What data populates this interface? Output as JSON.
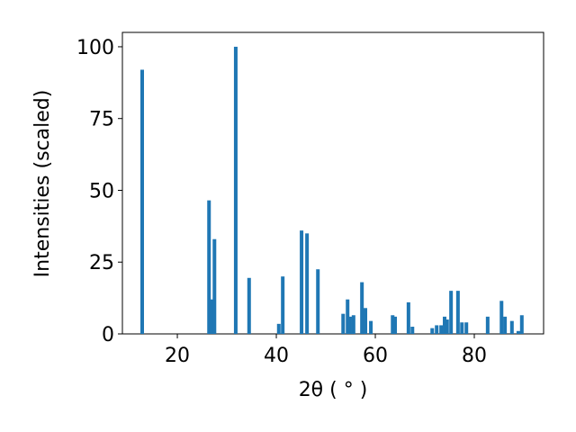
{
  "chart_data": {
    "type": "bar",
    "x_label": "2θ ( ° )",
    "y_label": "Intensities (scaled)",
    "color": "#1f77b4",
    "x": [
      12.9,
      26.4,
      26.9,
      27.5,
      31.8,
      34.5,
      40.5,
      41.3,
      45.1,
      46.2,
      48.4,
      53.5,
      54.4,
      54.9,
      55.6,
      57.3,
      58.0,
      59.1,
      63.5,
      64.0,
      66.7,
      67.5,
      71.5,
      72.4,
      73.3,
      74.0,
      74.5,
      75.3,
      76.7,
      77.5,
      78.4,
      82.7,
      85.5,
      86.2,
      87.6,
      88.9,
      89.6
    ],
    "values": [
      92,
      46.5,
      12,
      33,
      100,
      19.5,
      3.5,
      20,
      36,
      35,
      22.5,
      7,
      12,
      6,
      6.5,
      18,
      9,
      4.5,
      6.5,
      6,
      11,
      2.5,
      2,
      3,
      3,
      6,
      5,
      15,
      15,
      4,
      4,
      6,
      11.5,
      6,
      4.5,
      1,
      6.5
    ],
    "xlim": [
      8.9,
      94.0
    ],
    "ylim": [
      0,
      105
    ],
    "xticks": [
      20,
      40,
      60,
      80
    ],
    "yticks": [
      0,
      25,
      50,
      75,
      100
    ]
  }
}
